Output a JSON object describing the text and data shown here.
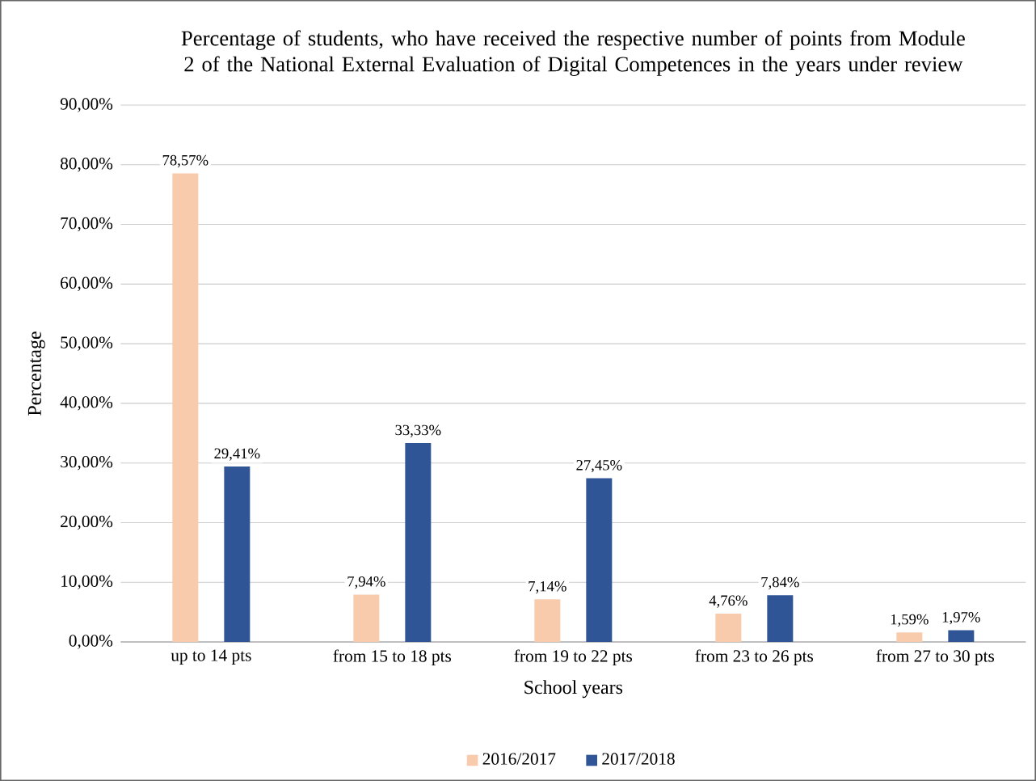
{
  "chart_data": {
    "type": "bar",
    "title": "Percentage of students, who have received the respective number of points from Module 2 of the National External Evaluation of Digital Competences in the years under review",
    "xlabel": "School years",
    "ylabel": "Percentage",
    "categories": [
      "up to 14 pts",
      "from 15 to 18 pts",
      "from 19 to 22 pts",
      "from 23 to 26 pts",
      "from 27 to 30 pts"
    ],
    "series": [
      {
        "name": "2016/2017",
        "color": "#f8cbad",
        "values": [
          78.57,
          7.94,
          7.14,
          4.76,
          1.59
        ],
        "value_labels": [
          "78,57%",
          "7,94%",
          "7,14%",
          "4,76%",
          "1,59%"
        ]
      },
      {
        "name": "2017/2018",
        "color": "#2f5597",
        "values": [
          29.41,
          33.33,
          27.45,
          7.84,
          1.97
        ],
        "value_labels": [
          "29,41%",
          "33,33%",
          "27,45%",
          "7,84%",
          "1,97%"
        ]
      }
    ],
    "ylim": [
      0,
      90
    ],
    "yticks": [
      {
        "value": 0,
        "label": "0,00%"
      },
      {
        "value": 10,
        "label": "10,00%"
      },
      {
        "value": 20,
        "label": "20,00%"
      },
      {
        "value": 30,
        "label": "30,00%"
      },
      {
        "value": 40,
        "label": "40,00%"
      },
      {
        "value": 50,
        "label": "50,00%"
      },
      {
        "value": 60,
        "label": "60,00%"
      },
      {
        "value": 70,
        "label": "70,00%"
      },
      {
        "value": 80,
        "label": "80,00%"
      },
      {
        "value": 90,
        "label": "90,00%"
      }
    ],
    "grid": "y",
    "legend": "bottom"
  }
}
